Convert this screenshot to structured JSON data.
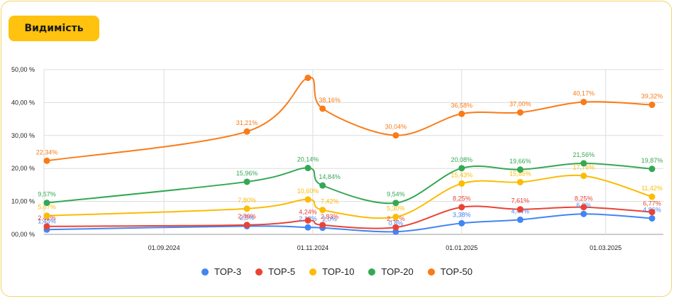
{
  "header": {
    "title": "Видимість"
  },
  "chart_data": {
    "type": "line",
    "title": "Видимість",
    "xlabel": "",
    "ylabel": "",
    "ylim": [
      0,
      50
    ],
    "grid": true,
    "legend_position": "bottom",
    "y_ticks": [
      "00,00 %",
      "10,00 %",
      "20,00 %",
      "30,00 %",
      "40,00 %",
      "50,00 %"
    ],
    "x_ticks": [
      {
        "label": "01.09.2024",
        "date": "2024-09-01"
      },
      {
        "label": "01.11.2024",
        "date": "2024-11-01"
      },
      {
        "label": "01.01.2025",
        "date": "2025-01-01"
      },
      {
        "label": "01.03.2025",
        "date": "2025-03-01"
      }
    ],
    "x": [
      "2024-07-15",
      "2024-10-05",
      "2024-10-30",
      "2024-11-05",
      "2024-12-05",
      "2025-01-01",
      "2025-01-25",
      "2025-02-20",
      "2025-03-20"
    ],
    "series": [
      {
        "name": "TOP-3",
        "color": "#4285f4",
        "values": [
          1.45,
          2.5,
          2.12,
          2.0,
          0.8,
          3.38,
          4.44,
          6.2,
          4.86
        ],
        "labels": [
          "1,45%",
          "2,5%",
          "2,12%",
          "2,0%",
          "0,8%",
          "3,38%",
          "4,44%",
          "6,2%",
          "4,86%"
        ]
      },
      {
        "name": "TOP-5",
        "color": "#ea4335",
        "values": [
          2.42,
          2.86,
          4.24,
          2.83,
          2.12,
          8.25,
          7.61,
          8.25,
          6.77
        ],
        "labels": [
          "2,42%",
          "2,86%",
          "4,24%",
          "2,83%",
          "2,12%",
          "8,25%",
          "7,61%",
          "8,25%",
          "6,77%"
        ]
      },
      {
        "name": "TOP-10",
        "color": "#fbbc04",
        "values": [
          5.67,
          7.8,
          10.6,
          7.42,
          5.3,
          15.43,
          15.85,
          17.76,
          11.42
        ],
        "labels": [
          "5,67%",
          "7,80%",
          "10,60%",
          "7,42%",
          "5,30%",
          "15,43%",
          "15,85%",
          "17,76%",
          "11,42%"
        ]
      },
      {
        "name": "TOP-20",
        "color": "#34a853",
        "values": [
          9.57,
          15.96,
          20.14,
          14.84,
          9.54,
          20.08,
          19.66,
          21.56,
          19.87
        ],
        "labels": [
          "9,57%",
          "15,96%",
          "20,14%",
          "14,84%",
          "9,54%",
          "20,08%",
          "19,66%",
          "21,56%",
          "19,87%"
        ]
      },
      {
        "name": "TOP-50",
        "color": "#fa7b17",
        "values": [
          22.34,
          31.21,
          47.5,
          38.16,
          30.04,
          36.58,
          37.0,
          40.17,
          39.32
        ],
        "labels": [
          "22,34%",
          "31,21%",
          "",
          "38,16%",
          "30,04%",
          "36,58%",
          "37,00%",
          "40,17%",
          "39,32%"
        ]
      }
    ]
  }
}
